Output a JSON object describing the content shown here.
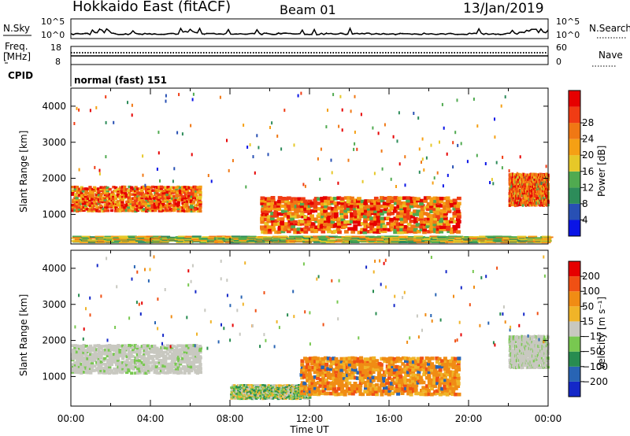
{
  "header": {
    "title": "Hokkaido East (fitACF)",
    "beam": "Beam 01",
    "date": "13/Jan/2019"
  },
  "top_panels": {
    "noise": {
      "left_label": "N.Sky",
      "right_label": "N.Search",
      "left_ticks": [
        "10^5",
        "10^0"
      ],
      "right_ticks": [
        "10^5",
        "10^0"
      ]
    },
    "freq": {
      "left_label": "Freq.",
      "left_unit": "[MHz]",
      "right_label": "Nave",
      "left_ticks": [
        "18",
        "8"
      ],
      "right_ticks": [
        "60",
        "0"
      ]
    },
    "cpid_label": "CPID",
    "cpid_text": "normal (fast) 151"
  },
  "chart_data": [
    {
      "type": "heatmap",
      "name": "power",
      "xlabel": "Time UT",
      "ylabel": "Slant Range [km]",
      "xlim": [
        0,
        24
      ],
      "ylim": [
        180,
        4500
      ],
      "x_ticks": [
        "00:00",
        "04:00",
        "08:00",
        "12:00",
        "16:00",
        "20:00",
        "00:00"
      ],
      "y_ticks": [
        1000,
        2000,
        3000,
        4000
      ],
      "colorbar": {
        "label": "Power [dB]",
        "ticks": [
          "4",
          "8",
          "12",
          "16",
          "20",
          "24",
          "28"
        ],
        "colors": [
          "#0a14e6",
          "#2850b4",
          "#2d8c5a",
          "#50aa50",
          "#e6c828",
          "#f5a014",
          "#f07814",
          "#f03c14",
          "#e60000"
        ]
      },
      "regions": [
        {
          "t": [
            0.0,
            6.5
          ],
          "r": [
            1050,
            1750
          ],
          "level": "high"
        },
        {
          "t": [
            9.5,
            19.5
          ],
          "r": [
            450,
            1450
          ],
          "level": "high"
        },
        {
          "t": [
            22.0,
            24.0
          ],
          "r": [
            1200,
            2100
          ],
          "level": "high"
        },
        {
          "t": [
            0.0,
            24.0
          ],
          "r": [
            200,
            380
          ],
          "level": "low"
        }
      ]
    },
    {
      "type": "heatmap",
      "name": "velocity",
      "xlabel": "Time UT",
      "ylabel": "Slant Range [km]",
      "xlim": [
        0,
        24
      ],
      "ylim": [
        180,
        4500
      ],
      "x_ticks": [
        "00:00",
        "04:00",
        "08:00",
        "12:00",
        "16:00",
        "20:00",
        "00:00"
      ],
      "y_ticks": [
        1000,
        2000,
        3000,
        4000
      ],
      "colorbar": {
        "label": "Velocity [m s⁻¹]",
        "ticks": [
          "200",
          "100",
          "50",
          "15",
          "−15",
          "−50",
          "−100",
          "−200"
        ],
        "colors": [
          "#1428c8",
          "#2864b4",
          "#288c50",
          "#78c850",
          "#c8c8c0",
          "#f0b428",
          "#f08c14",
          "#f05014",
          "#e60000"
        ]
      },
      "regions": [
        {
          "t": [
            0.0,
            6.5
          ],
          "r": [
            1050,
            1850
          ],
          "level": "gray"
        },
        {
          "t": [
            8.0,
            12.0
          ],
          "r": [
            350,
            750
          ],
          "level": "mixed"
        },
        {
          "t": [
            11.5,
            19.5
          ],
          "r": [
            450,
            1500
          ],
          "level": "orange"
        },
        {
          "t": [
            22.0,
            24.0
          ],
          "r": [
            1200,
            2100
          ],
          "level": "gray"
        }
      ]
    }
  ]
}
